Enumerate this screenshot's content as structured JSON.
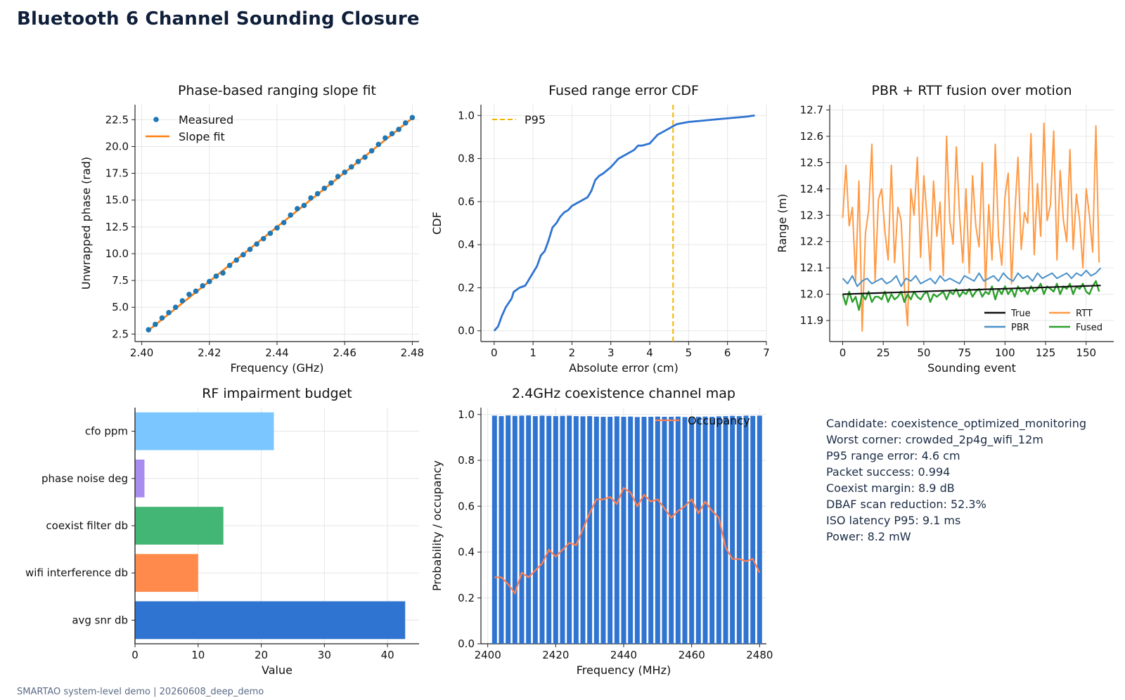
{
  "page": {
    "title": "Bluetooth 6 Channel Sounding Closure",
    "footer": "SMARTAO system-level demo | 20260608_deep_demo"
  },
  "summary": [
    "Candidate: coexistence_optimized_monitoring",
    "Worst corner: crowded_2p4g_wifi_12m",
    "P95 range error: 4.6 cm",
    "Packet success: 0.994",
    "Coexist margin: 8.9 dB",
    "DBAF scan reduction: 52.3%",
    "ISO latency P95: 9.1 ms",
    "Power: 8.2 mW"
  ],
  "colors": {
    "measured": "#1f77b4",
    "fit": "#ff7f0e",
    "cdf": "#2f74d0",
    "p95": "#f5b400",
    "true": "#111111",
    "pbr": "#4a90c8",
    "rtt": "#ff9a45",
    "fused": "#2ca02c",
    "occ_bar": "#2f74d0",
    "occ_line": "#ff7f50"
  },
  "chart_data": [
    {
      "id": "slope",
      "type": "scatter",
      "title": "Phase-based ranging slope fit",
      "xlabel": "Frequency (GHz)",
      "ylabel": "Unwrapped phase (rad)",
      "xlim": [
        2.398,
        2.482
      ],
      "ylim": [
        1.8,
        23.9
      ],
      "xticks": [
        2.4,
        2.42,
        2.44,
        2.46,
        2.48
      ],
      "xtick_labels": [
        "2.40",
        "2.42",
        "2.44",
        "2.46",
        "2.48"
      ],
      "yticks": [
        2.5,
        5.0,
        7.5,
        10.0,
        12.5,
        15.0,
        17.5,
        20.0,
        22.5
      ],
      "ytick_labels": [
        "2.5",
        "5.0",
        "7.5",
        "10.0",
        "12.5",
        "15.0",
        "17.5",
        "20.0",
        "22.5"
      ],
      "legend": [
        "Measured",
        "Slope fit"
      ],
      "legend_loc": "upper-left",
      "grid": true,
      "series": [
        {
          "name": "Measured",
          "kind": "scatter",
          "x": [
            2.402,
            2.404,
            2.406,
            2.408,
            2.41,
            2.412,
            2.414,
            2.416,
            2.418,
            2.42,
            2.422,
            2.424,
            2.426,
            2.428,
            2.43,
            2.432,
            2.434,
            2.436,
            2.438,
            2.44,
            2.442,
            2.444,
            2.446,
            2.448,
            2.45,
            2.452,
            2.454,
            2.456,
            2.458,
            2.46,
            2.462,
            2.464,
            2.466,
            2.468,
            2.47,
            2.472,
            2.474,
            2.476,
            2.478,
            2.48
          ],
          "y": [
            2.9,
            3.4,
            4.0,
            4.5,
            5.0,
            5.6,
            6.2,
            6.5,
            7.0,
            7.4,
            7.9,
            8.2,
            8.9,
            9.4,
            9.9,
            10.4,
            10.9,
            11.4,
            11.9,
            12.4,
            12.9,
            13.6,
            14.2,
            14.5,
            15.2,
            15.6,
            16.1,
            16.6,
            17.2,
            17.6,
            18.1,
            18.6,
            19.0,
            19.6,
            20.2,
            20.8,
            21.2,
            21.6,
            22.2,
            22.7
          ]
        },
        {
          "name": "Slope fit",
          "kind": "line",
          "x": [
            2.402,
            2.48
          ],
          "y": [
            2.85,
            22.65
          ]
        }
      ]
    },
    {
      "id": "cdf",
      "type": "line",
      "title": "Fused range error CDF",
      "xlabel": "Absolute error (cm)",
      "ylabel": "CDF",
      "xlim": [
        -0.34,
        7.0
      ],
      "ylim": [
        -0.05,
        1.05
      ],
      "xticks": [
        0,
        1,
        2,
        3,
        4,
        5,
        6,
        7
      ],
      "xtick_labels": [
        "0",
        "1",
        "2",
        "3",
        "4",
        "5",
        "6",
        "7"
      ],
      "yticks": [
        0.0,
        0.2,
        0.4,
        0.6,
        0.8,
        1.0
      ],
      "ytick_labels": [
        "0.0",
        "0.2",
        "0.4",
        "0.6",
        "0.8",
        "1.0"
      ],
      "legend": [
        "P95"
      ],
      "legend_loc": "upper-left",
      "grid": true,
      "p95": 4.6,
      "series": [
        {
          "name": "CDF",
          "x": [
            0,
            0.1,
            0.2,
            0.3,
            0.45,
            0.5,
            0.65,
            0.8,
            0.9,
            1.0,
            1.1,
            1.2,
            1.3,
            1.4,
            1.5,
            1.6,
            1.7,
            1.8,
            1.9,
            2.0,
            2.2,
            2.4,
            2.5,
            2.6,
            2.7,
            2.8,
            3.0,
            3.1,
            3.2,
            3.4,
            3.6,
            3.7,
            3.8,
            4.0,
            4.1,
            4.2,
            4.3,
            4.4,
            4.6,
            4.7,
            5.0,
            5.3,
            5.6,
            5.9,
            6.2,
            6.5,
            6.7
          ],
          "y": [
            0,
            0.02,
            0.07,
            0.11,
            0.15,
            0.18,
            0.2,
            0.21,
            0.24,
            0.27,
            0.3,
            0.35,
            0.37,
            0.42,
            0.48,
            0.5,
            0.53,
            0.55,
            0.56,
            0.58,
            0.6,
            0.62,
            0.65,
            0.7,
            0.72,
            0.73,
            0.76,
            0.78,
            0.8,
            0.82,
            0.84,
            0.86,
            0.86,
            0.87,
            0.89,
            0.91,
            0.92,
            0.93,
            0.95,
            0.96,
            0.97,
            0.975,
            0.98,
            0.985,
            0.99,
            0.995,
            1.0
          ]
        }
      ]
    },
    {
      "id": "fusion",
      "type": "line",
      "title": "PBR + RTT fusion over motion",
      "xlabel": "Sounding event",
      "ylabel": "Range (m)",
      "xlim": [
        -8,
        167
      ],
      "ylim": [
        11.82,
        12.72
      ],
      "xticks": [
        0,
        25,
        50,
        75,
        100,
        125,
        150
      ],
      "xtick_labels": [
        "0",
        "25",
        "50",
        "75",
        "100",
        "125",
        "150"
      ],
      "yticks": [
        11.9,
        12.0,
        12.1,
        12.2,
        12.3,
        12.4,
        12.5,
        12.6,
        12.7
      ],
      "ytick_labels": [
        "11.9",
        "12.0",
        "12.1",
        "12.2",
        "12.3",
        "12.4",
        "12.5",
        "12.6",
        "12.7"
      ],
      "legend": [
        "True",
        "RTT",
        "PBR",
        "Fused"
      ],
      "legend_loc": "lower-right",
      "grid": true,
      "series": [
        {
          "name": "True",
          "x": [
            0,
            159
          ],
          "y": [
            12.0,
            12.033
          ]
        },
        {
          "name": "RTT",
          "x": [
            0,
            2,
            4,
            6,
            8,
            10,
            12,
            14,
            16,
            18,
            20,
            22,
            24,
            26,
            28,
            30,
            32,
            34,
            36,
            38,
            40,
            42,
            44,
            46,
            48,
            50,
            52,
            54,
            56,
            58,
            60,
            62,
            64,
            66,
            68,
            70,
            72,
            74,
            76,
            78,
            80,
            82,
            84,
            86,
            88,
            90,
            92,
            94,
            96,
            98,
            100,
            102,
            104,
            106,
            108,
            110,
            112,
            114,
            116,
            118,
            120,
            122,
            124,
            126,
            128,
            130,
            132,
            134,
            136,
            138,
            140,
            142,
            144,
            146,
            148,
            150,
            152,
            154,
            156,
            158
          ],
          "y": [
            12.29,
            12.49,
            12.26,
            12.33,
            12.05,
            12.43,
            11.86,
            12.23,
            12.32,
            12.57,
            12.05,
            12.36,
            12.4,
            12.24,
            12.13,
            12.49,
            12.12,
            12.33,
            12.28,
            12.03,
            11.88,
            12.4,
            12.3,
            12.52,
            12.14,
            12.45,
            12.29,
            12.09,
            12.43,
            12.22,
            12.35,
            12.07,
            12.6,
            12.28,
            12.19,
            12.56,
            12.3,
            12.12,
            12.4,
            12.08,
            12.45,
            12.26,
            12.18,
            12.5,
            12.02,
            12.34,
            12.13,
            12.57,
            12.22,
            12.11,
            12.37,
            12.46,
            12.04,
            12.3,
            12.52,
            12.17,
            12.31,
            12.27,
            12.61,
            12.15,
            12.42,
            12.22,
            12.65,
            12.28,
            12.34,
            12.62,
            12.13,
            12.47,
            12.28,
            12.2,
            12.55,
            12.17,
            12.38,
            12.28,
            12.1,
            12.4,
            12.3,
            12.16,
            12.64,
            12.12
          ]
        },
        {
          "name": "PBR",
          "x": [
            0,
            3,
            6,
            9,
            12,
            15,
            18,
            21,
            24,
            27,
            30,
            33,
            36,
            39,
            42,
            45,
            48,
            51,
            54,
            57,
            60,
            63,
            66,
            69,
            72,
            75,
            78,
            81,
            84,
            87,
            90,
            93,
            96,
            99,
            102,
            105,
            108,
            111,
            114,
            117,
            120,
            123,
            126,
            129,
            132,
            135,
            138,
            141,
            144,
            147,
            150,
            153,
            156,
            159
          ],
          "y": [
            12.06,
            12.04,
            12.07,
            12.03,
            12.05,
            12.06,
            12.04,
            12.05,
            12.06,
            12.04,
            12.05,
            12.07,
            12.03,
            12.06,
            12.05,
            12.07,
            12.04,
            12.05,
            12.06,
            12.04,
            12.07,
            12.05,
            12.06,
            12.05,
            12.04,
            12.07,
            12.06,
            12.05,
            12.08,
            12.05,
            12.06,
            12.07,
            12.05,
            12.08,
            12.06,
            12.05,
            12.08,
            12.06,
            12.07,
            12.05,
            12.08,
            12.06,
            12.07,
            12.08,
            12.06,
            12.07,
            12.08,
            12.06,
            12.08,
            12.07,
            12.09,
            12.07,
            12.08,
            12.1
          ]
        },
        {
          "name": "Fused",
          "x": [
            0,
            2,
            4,
            6,
            8,
            10,
            12,
            14,
            16,
            18,
            20,
            22,
            24,
            26,
            28,
            30,
            32,
            34,
            36,
            38,
            40,
            42,
            44,
            46,
            48,
            50,
            52,
            54,
            56,
            58,
            60,
            62,
            64,
            66,
            68,
            70,
            72,
            74,
            76,
            78,
            80,
            82,
            84,
            86,
            88,
            90,
            92,
            94,
            96,
            98,
            100,
            102,
            104,
            106,
            108,
            110,
            112,
            114,
            116,
            118,
            120,
            122,
            124,
            126,
            128,
            130,
            132,
            134,
            136,
            138,
            140,
            142,
            144,
            146,
            148,
            150,
            152,
            154,
            156,
            158
          ],
          "y": [
            12.0,
            11.96,
            12.01,
            11.97,
            11.99,
            11.94,
            12.0,
            11.98,
            12.01,
            11.97,
            11.99,
            11.99,
            11.98,
            12.01,
            11.97,
            12.0,
            11.98,
            11.99,
            12.01,
            11.97,
            12.0,
            11.98,
            12.01,
            11.99,
            11.98,
            12.0,
            12.01,
            11.97,
            12.0,
            11.99,
            12.0,
            12.01,
            11.98,
            12.01,
            12.0,
            12.02,
            11.99,
            12.01,
            12.0,
            12.02,
            11.99,
            12.01,
            12.02,
            11.99,
            12.01,
            12.0,
            12.03,
            11.98,
            12.02,
            12.0,
            12.03,
            12.0,
            12.02,
            11.99,
            12.03,
            12.01,
            12.02,
            12.0,
            12.03,
            12.01,
            12.02,
            12.04,
            12.0,
            12.03,
            12.02,
            12.01,
            12.04,
            12.0,
            12.03,
            12.02,
            12.04,
            12.0,
            12.03,
            12.02,
            12.04,
            12.01,
            12.0,
            12.03,
            12.05,
            12.01
          ]
        }
      ]
    },
    {
      "id": "budget",
      "type": "bar",
      "orientation": "horizontal",
      "title": "RF impairment budget",
      "xlabel": "Value",
      "ylabel": "",
      "xlim": [
        0,
        45
      ],
      "xticks": [
        0,
        10,
        20,
        30,
        40
      ],
      "xtick_labels": [
        "0",
        "10",
        "20",
        "30",
        "40"
      ],
      "grid": true,
      "categories": [
        "cfo ppm",
        "phase noise deg",
        "coexist filter db",
        "wifi interference db",
        "avg snr db"
      ],
      "values": [
        22,
        1.5,
        14,
        10,
        42.8
      ],
      "bar_colors": [
        "#7cc6ff",
        "#a88cf0",
        "#43b574",
        "#ff8a4c",
        "#2f74d0"
      ]
    },
    {
      "id": "coex",
      "type": "bar",
      "title": "2.4GHz coexistence channel map",
      "xlabel": "Frequency (MHz)",
      "ylabel": "Probability / occupancy",
      "xlim": [
        2398,
        2482
      ],
      "ylim": [
        0,
        1.03
      ],
      "xticks": [
        2400,
        2420,
        2440,
        2460,
        2480
      ],
      "xtick_labels": [
        "2400",
        "2420",
        "2440",
        "2460",
        "2480"
      ],
      "yticks": [
        0.0,
        0.2,
        0.4,
        0.6,
        0.8,
        1.0
      ],
      "ytick_labels": [
        "0.0",
        "0.2",
        "0.4",
        "0.6",
        "0.8",
        "1.0"
      ],
      "legend": [
        "Occupancy"
      ],
      "legend_loc": "upper-right",
      "grid": true,
      "x": [
        2402,
        2404,
        2406,
        2408,
        2410,
        2412,
        2414,
        2416,
        2418,
        2420,
        2422,
        2424,
        2426,
        2428,
        2430,
        2432,
        2434,
        2436,
        2438,
        2440,
        2442,
        2444,
        2446,
        2448,
        2450,
        2452,
        2454,
        2456,
        2458,
        2460,
        2462,
        2464,
        2466,
        2468,
        2470,
        2472,
        2474,
        2476,
        2478,
        2480
      ],
      "series": [
        {
          "name": "Probability",
          "kind": "bar",
          "values": [
            0.995,
            0.993,
            0.996,
            0.994,
            0.995,
            0.996,
            0.993,
            0.995,
            0.994,
            0.993,
            0.994,
            0.995,
            0.993,
            0.992,
            0.993,
            0.991,
            0.99,
            0.99,
            0.992,
            0.99,
            0.991,
            0.989,
            0.99,
            0.99,
            0.991,
            0.99,
            0.99,
            0.991,
            0.989,
            0.99,
            0.99,
            0.991,
            0.99,
            0.992,
            0.993,
            0.994,
            0.993,
            0.995,
            0.994,
            0.995
          ]
        },
        {
          "name": "Occupancy",
          "kind": "line",
          "values": [
            0.29,
            0.29,
            0.26,
            0.22,
            0.31,
            0.29,
            0.32,
            0.35,
            0.41,
            0.38,
            0.41,
            0.44,
            0.43,
            0.5,
            0.57,
            0.63,
            0.63,
            0.64,
            0.61,
            0.68,
            0.66,
            0.6,
            0.65,
            0.62,
            0.63,
            0.59,
            0.55,
            0.58,
            0.6,
            0.63,
            0.57,
            0.62,
            0.58,
            0.55,
            0.42,
            0.37,
            0.37,
            0.36,
            0.37,
            0.31
          ]
        }
      ]
    }
  ]
}
